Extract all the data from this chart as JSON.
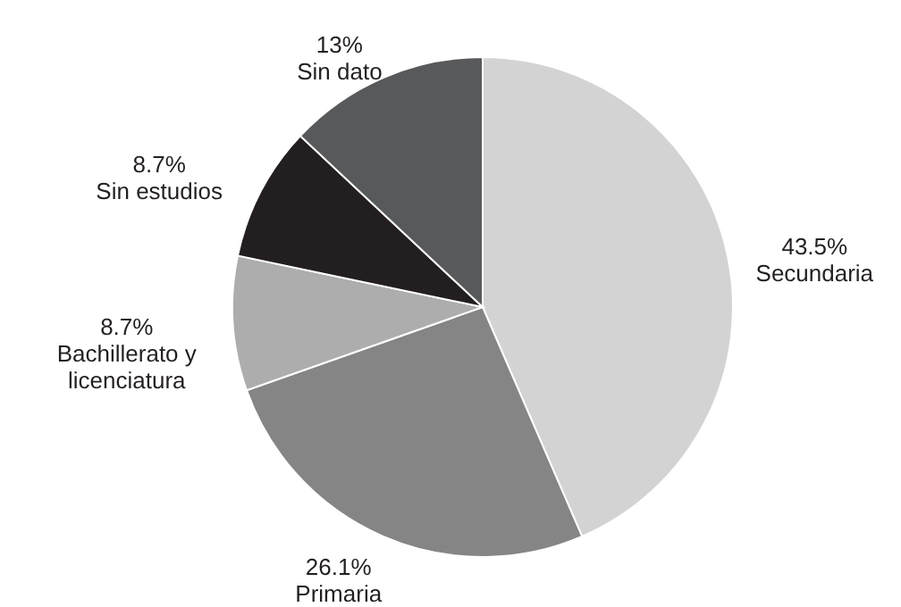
{
  "chart_data": {
    "type": "pie",
    "categories": [
      "Secundaria",
      "Primaria",
      "Bachillerato y licenciatura",
      "Sin estudios",
      "Sin dato"
    ],
    "values": [
      43.5,
      26.1,
      8.7,
      8.7,
      13
    ],
    "value_labels": [
      "43.5%",
      "26.1%",
      "8.7%",
      "8.7%",
      "13%"
    ],
    "colors": [
      "#d3d3d3",
      "#858585",
      "#adadad",
      "#231f20",
      "#58595b"
    ]
  }
}
